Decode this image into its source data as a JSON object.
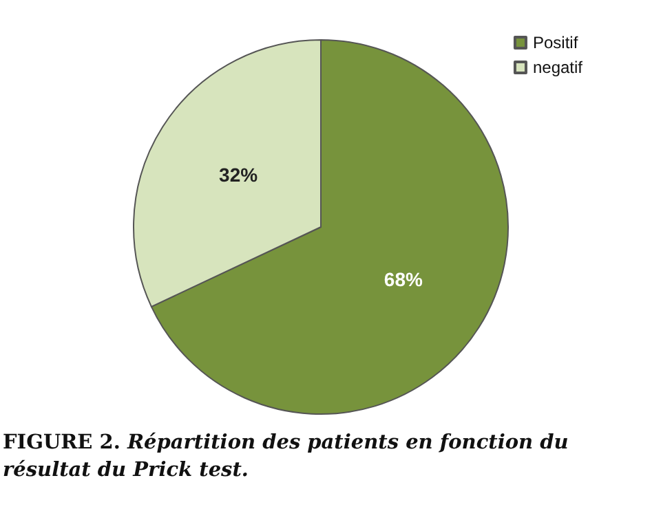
{
  "chart_data": {
    "type": "pie",
    "categories": [
      "Positif",
      "negatif"
    ],
    "values": [
      68,
      32
    ],
    "colors": [
      "#77933c",
      "#d7e4bd"
    ],
    "value_labels": [
      "68%",
      "32%"
    ],
    "legend": "top right",
    "annotations": [
      "FIGURE 2. Répartition des patients en fonction du résultat du Prick test."
    ]
  }
}
